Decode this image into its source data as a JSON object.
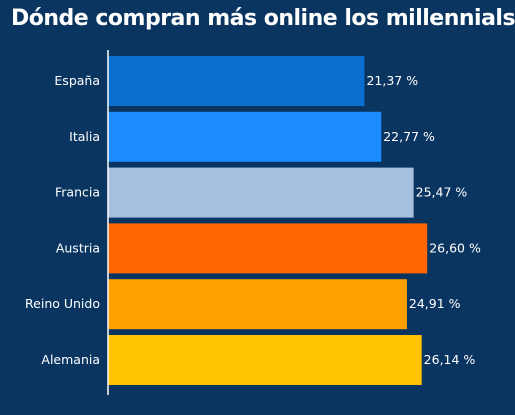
{
  "chart_data": {
    "type": "bar",
    "orientation": "horizontal",
    "title": "Dónde compran más online los millennials",
    "categories": [
      "España",
      "Italia",
      "Francia",
      "Austria",
      "Reino Unido",
      "Alemania"
    ],
    "values": [
      21.37,
      22.77,
      25.47,
      26.6,
      24.91,
      26.14
    ],
    "value_labels": [
      "21,37 %",
      "22,77 %",
      "25,47 %",
      "26,60 %",
      "24,91 %",
      "26,14 %"
    ],
    "colors": [
      "#0a6fcf",
      "#1a8cff",
      "#a5c0de",
      "#ff6600",
      "#ffa000",
      "#ffc300"
    ],
    "xlim": [
      0,
      32
    ],
    "xlabel": "",
    "ylabel": "",
    "grid": false,
    "background": "#0b3561"
  }
}
